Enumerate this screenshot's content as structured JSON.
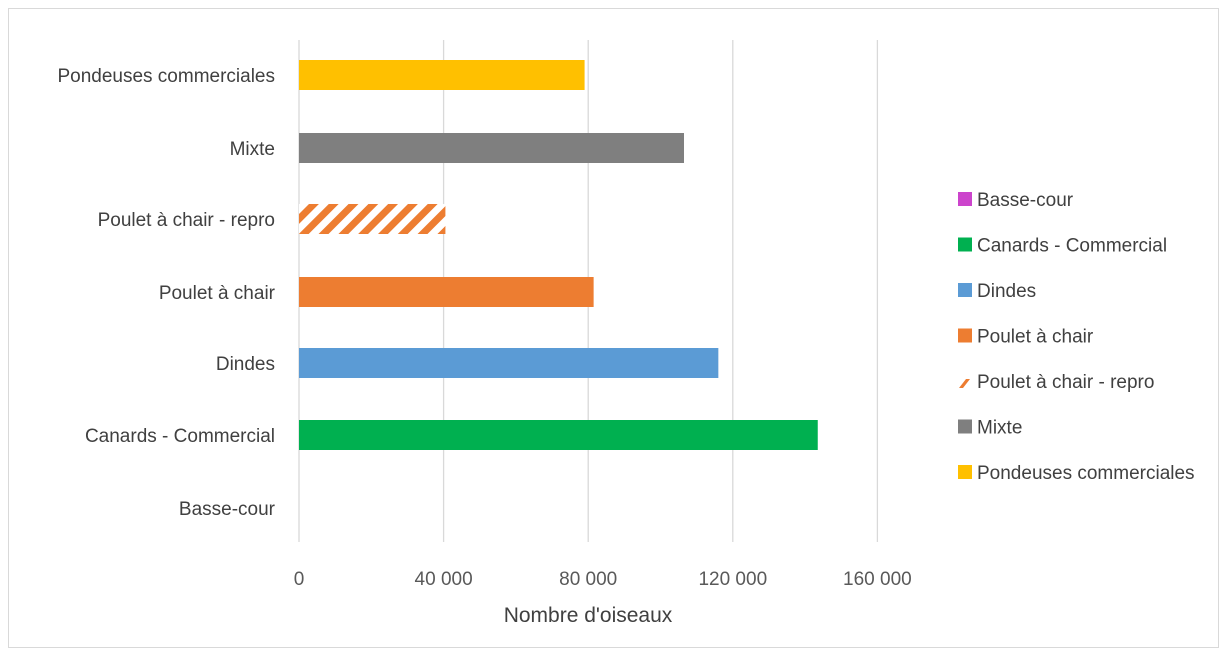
{
  "chart_data": {
    "type": "bar",
    "orientation": "horizontal",
    "title": "",
    "xlabel": "Nombre d'oiseaux",
    "ylabel": "",
    "xlim": [
      0,
      200000
    ],
    "x_ticks": [
      0,
      40000,
      80000,
      120000,
      160000
    ],
    "x_tick_labels": [
      "0",
      "40 000",
      "80 000",
      "120 000",
      "160 000"
    ],
    "grid": "vertical",
    "legend_position": "right",
    "categories": [
      "Basse-cour",
      "Canards - Commercial",
      "Dindes",
      "Poulet à chair",
      "Poulet à chair - repro",
      "Mixte",
      "Pondeuses commerciales"
    ],
    "values": [
      0,
      143500,
      116000,
      81500,
      40500,
      106500,
      79000
    ],
    "colors": [
      "#cc44cc",
      "#00b050",
      "#5b9bd5",
      "#ed7d31",
      "#ed7d31",
      "#7f7f7f",
      "#ffc000"
    ],
    "patterns": [
      "solid",
      "solid",
      "solid",
      "solid",
      "hatched",
      "solid",
      "solid"
    ]
  }
}
